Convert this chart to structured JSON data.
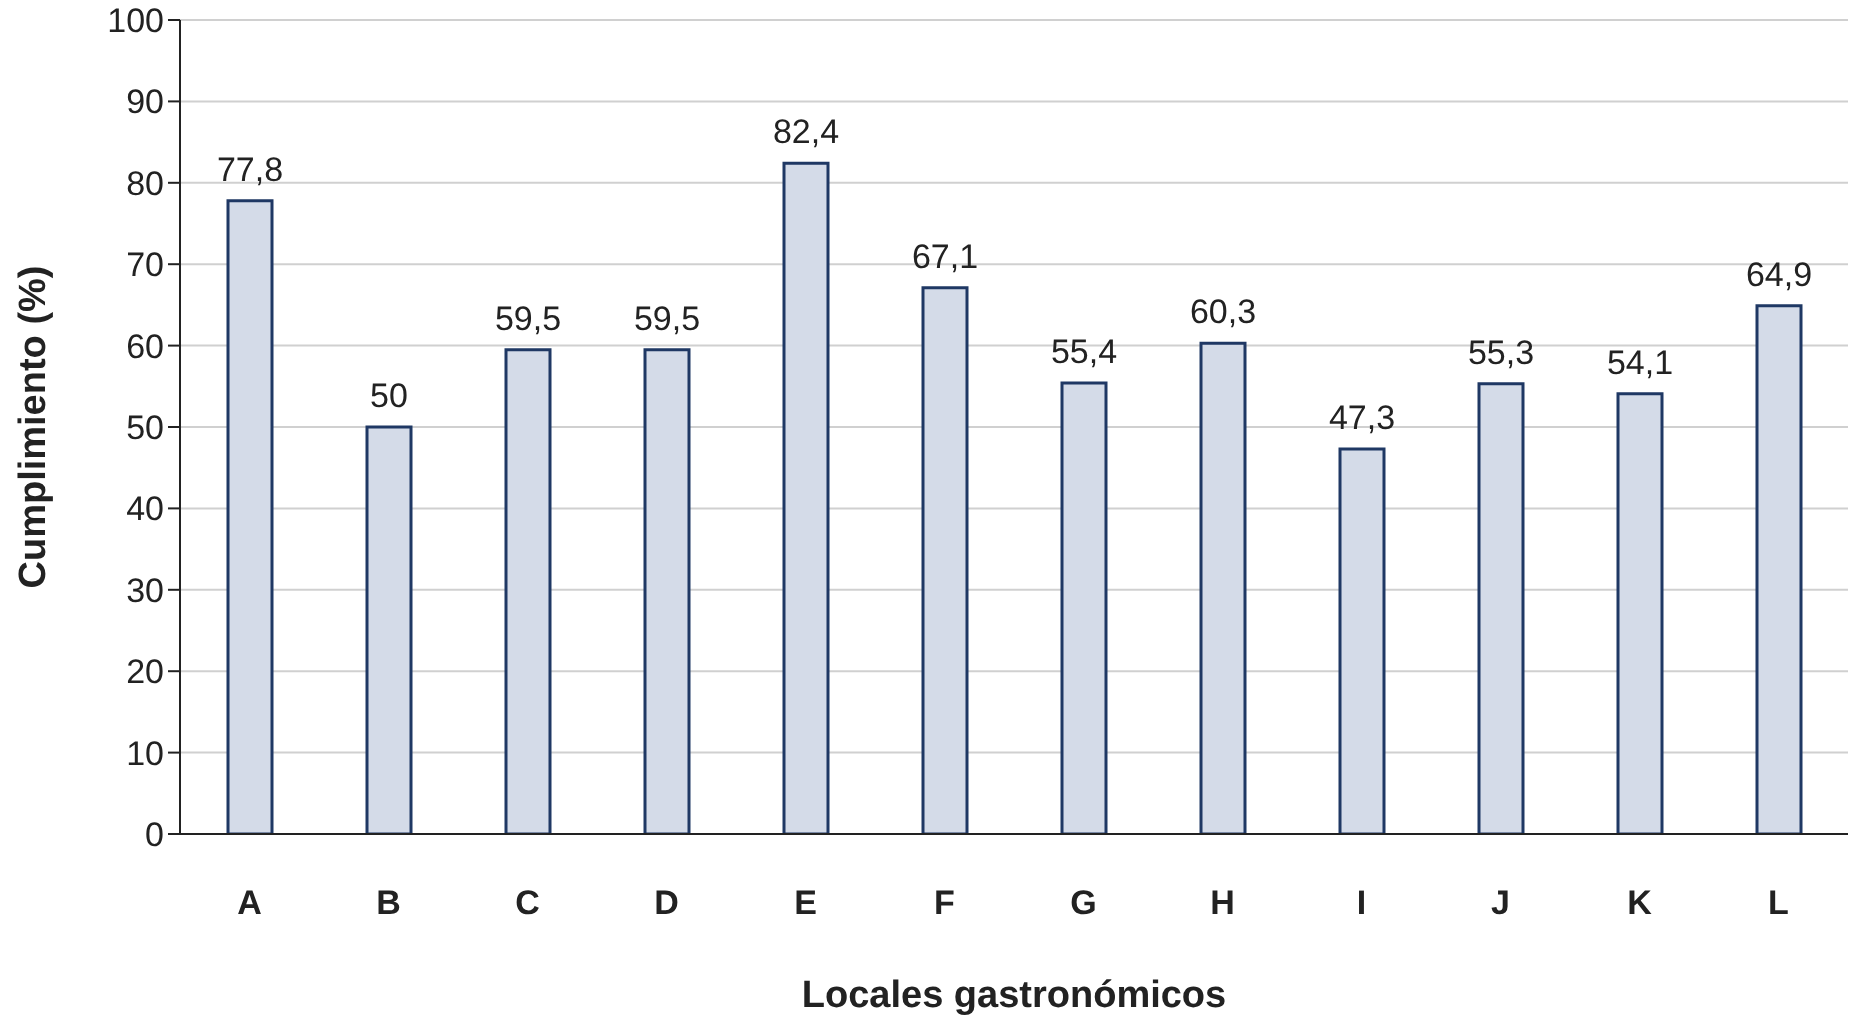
{
  "chart_data": {
    "type": "bar",
    "xlabel": "Locales gastronómicos",
    "ylabel": "Cumplimiento (%)",
    "categories": [
      "A",
      "B",
      "C",
      "D",
      "E",
      "F",
      "G",
      "H",
      "I",
      "J",
      "K",
      "L"
    ],
    "values": [
      77.8,
      50,
      59.5,
      59.5,
      82.4,
      67.1,
      55.4,
      60.3,
      47.3,
      55.3,
      54.1,
      64.9
    ],
    "value_labels": [
      "77,8",
      "50",
      "59,5",
      "59,5",
      "82,4",
      "67,1",
      "55,4",
      "60,3",
      "47,3",
      "55,3",
      "54,1",
      "64,9"
    ],
    "color": "#d4dbe8",
    "ylim": [
      0,
      100
    ],
    "yticks": [
      0,
      10,
      20,
      30,
      40,
      50,
      60,
      70,
      80,
      90,
      100
    ],
    "grid": "y"
  }
}
